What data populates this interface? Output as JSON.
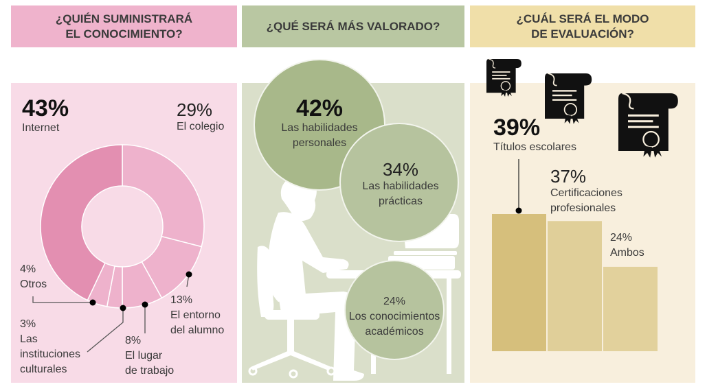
{
  "colors": {
    "pink_header": "#efb3cc",
    "pink_panel": "#f8dbe7",
    "pink_dark": "#e38fb1",
    "pink_light": "#eeb2cc",
    "green_header": "#b9c7a2",
    "green_panel": "#dadfca",
    "green_big": "#a8b88a",
    "green_small": "#b6c39e",
    "gold_header": "#f0dfa9",
    "gold_panel": "#f8efdd",
    "gold_bar1": "#d6bf7c",
    "gold_bar2": "#e0cf99",
    "gold_bar3": "#e2d19c"
  },
  "sections": {
    "knowledge": {
      "title_line1": "¿QUIÉN SUMINISTRARÁ",
      "title_line2": "EL CONOCIMIENTO?"
    },
    "valued": {
      "title": "¿QUÉ SERÁ MÁS VALORADO?"
    },
    "evaluation": {
      "title_line1": "¿CUÁL SERÁ EL MODO",
      "title_line2": "DE EVALUACIÓN?"
    }
  },
  "knowledge_labels": {
    "internet": {
      "pct": "43%",
      "label": "Internet"
    },
    "colegio": {
      "pct": "29%",
      "label": "El colegio"
    },
    "entorno": {
      "pct": "13%",
      "line1": "El entorno",
      "line2": "del alumno"
    },
    "lugar": {
      "pct": "8%",
      "line1": "El lugar",
      "line2": "de trabajo"
    },
    "instituciones": {
      "pct": "3%",
      "line1": "Las",
      "line2": "instituciones",
      "line3": "culturales"
    },
    "otros": {
      "pct": "4%",
      "label": "Otros"
    }
  },
  "valued_labels": {
    "personales": {
      "pct": "42%",
      "line1": "Las habilidades",
      "line2": "personales"
    },
    "practicas": {
      "pct": "34%",
      "line1": "Las habilidades",
      "line2": "prácticas"
    },
    "academicos": {
      "pct": "24%",
      "line1": "Los conocimientos",
      "line2": "académicos"
    }
  },
  "evaluation_labels": {
    "titulos": {
      "pct": "39%",
      "label": "Títulos escolares"
    },
    "certificaciones": {
      "pct": "37%",
      "line1": "Certificaciones",
      "line2": "profesionales"
    },
    "ambos": {
      "pct": "24%",
      "label": "Ambos"
    }
  },
  "chart_data": [
    {
      "type": "pie",
      "title": "¿QUIÉN SUMINISTRARÁ EL CONOCIMIENTO?",
      "categories": [
        "El colegio",
        "El entorno del alumno",
        "El lugar de trabajo",
        "Las instituciones culturales",
        "Otros",
        "Internet"
      ],
      "values": [
        29,
        13,
        8,
        3,
        4,
        43
      ],
      "unit": "%",
      "style": "donut"
    },
    {
      "type": "bubble",
      "title": "¿QUÉ SERÁ MÁS VALORADO?",
      "categories": [
        "Las habilidades personales",
        "Las habilidades prácticas",
        "Los conocimientos académicos"
      ],
      "values": [
        42,
        34,
        24
      ],
      "unit": "%"
    },
    {
      "type": "bar",
      "title": "¿CUÁL SERÁ EL MODO DE EVALUACIÓN?",
      "categories": [
        "Títulos escolares",
        "Certificaciones profesionales",
        "Ambos"
      ],
      "values": [
        39,
        37,
        24
      ],
      "unit": "%",
      "xlabel": "",
      "ylabel": "",
      "grid": false
    }
  ]
}
